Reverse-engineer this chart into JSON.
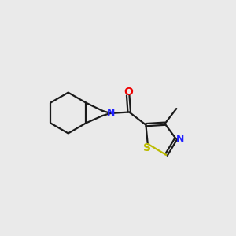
{
  "bg_color": "#eaeaea",
  "bond_color": "#1a1a1a",
  "nitrogen_color": "#2020ff",
  "oxygen_color": "#ee0000",
  "sulfur_color": "#bbbb00",
  "line_width": 1.6,
  "figsize": [
    3.0,
    3.0
  ],
  "dpi": 100,
  "xlim": [
    0,
    10
  ],
  "ylim": [
    0,
    10
  ]
}
